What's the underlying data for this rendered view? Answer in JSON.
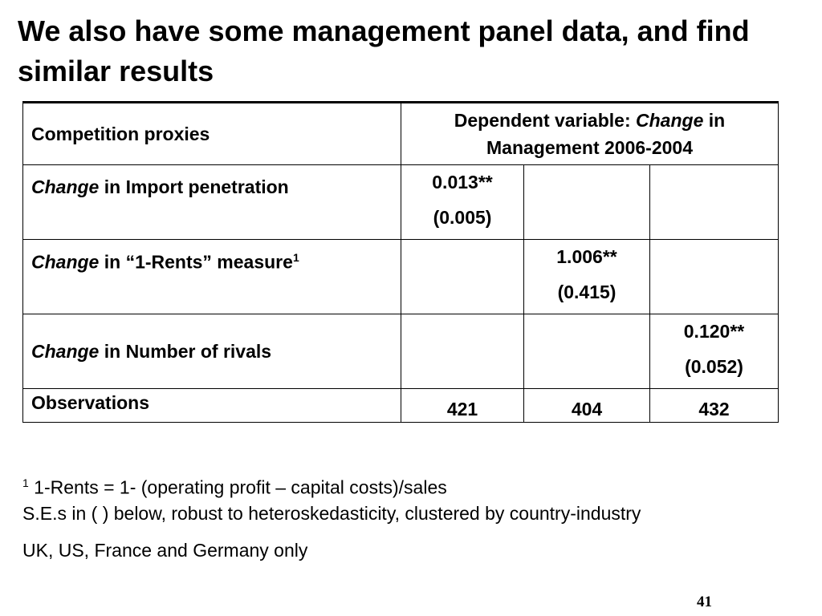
{
  "title": "We also have some management panel data, and find similar results",
  "table": {
    "header": {
      "label": "Competition proxies",
      "dep_prefix": "Dependent variable: ",
      "dep_italic": "Change",
      "dep_suffix": " in",
      "dep_line2": "Management 2006-2004"
    },
    "rows": [
      {
        "italic": "Change",
        "label": " in Import penetration",
        "sup": "",
        "coef": "0.013**",
        "se": "(0.005)",
        "col": 1
      },
      {
        "italic": "Change",
        "label": " in “1-Rents” measure",
        "sup": "1",
        "coef": "1.006**",
        "se": "(0.415)",
        "col": 2
      },
      {
        "italic": "Change",
        "label": " in Number of rivals",
        "sup": "",
        "coef": "0.120**",
        "se": "(0.052)",
        "col": 3
      }
    ],
    "observations": {
      "label": "Observations",
      "values": [
        "421",
        "404",
        "432"
      ]
    }
  },
  "notes": {
    "footnote_marker": "1",
    "footnote": " 1-Rents = 1- (operating profit – capital costs)/sales",
    "se_note": " S.E.s in ( ) below, robust to heteroskedasticity, clustered by country-industry",
    "sample_note": "UK, US, France and Germany only"
  },
  "page_number": "41"
}
